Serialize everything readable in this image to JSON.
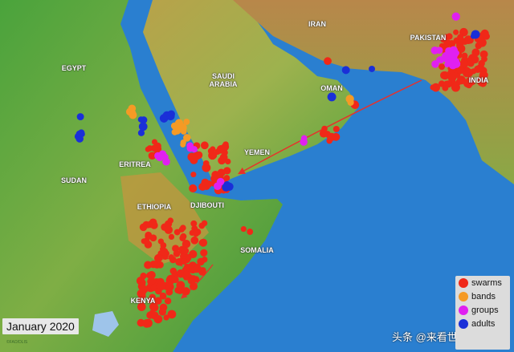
{
  "date_label": "January 2020",
  "credit": "©FAO/DLIS",
  "watermark": "头条 @来看世界呀",
  "countries": [
    "EGYPT",
    "SUDAN",
    "ERITREA",
    "ETHIOPIA",
    "DJIBOUTI",
    "SOMALIA",
    "KENYA",
    "SAUDI\nARABIA",
    "YEMEN",
    "OMAN",
    "IRAN",
    "PAKISTAN",
    "INDIA"
  ],
  "legend": [
    {
      "label": "swarms",
      "color": "#f02818"
    },
    {
      "label": "bands",
      "color": "#f59a25"
    },
    {
      "label": "groups",
      "color": "#e020f0"
    },
    {
      "label": "adults",
      "color": "#1a2fd8"
    }
  ],
  "colors": {
    "sea": "#2a7fd0",
    "lowland": "#3f9a3a",
    "highland": "#c89a4a",
    "arrow": "#e8302a"
  }
}
